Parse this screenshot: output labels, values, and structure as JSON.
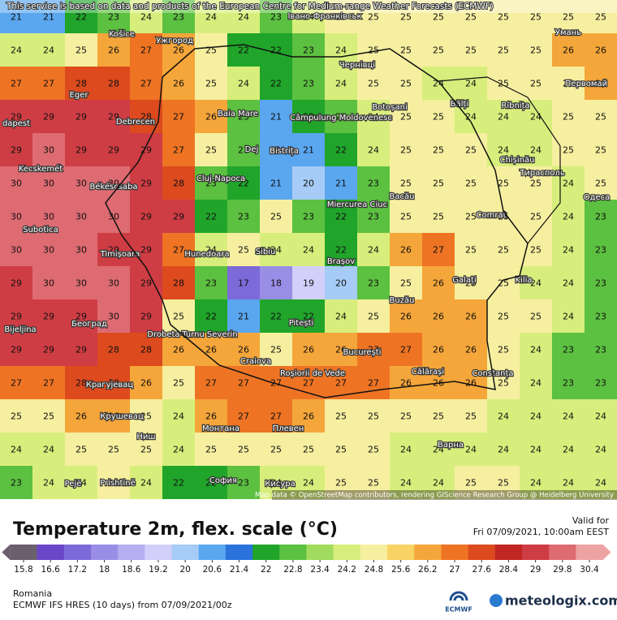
{
  "header": {
    "notice": "This service is based on data and products of the European Centre for Medium-range Weather Forecasts (ECMWF)"
  },
  "map": {
    "temperature_grid": [
      [
        21,
        21,
        22,
        23,
        24,
        23,
        24,
        24,
        23,
        24,
        25,
        25,
        25,
        25,
        25,
        25,
        25,
        25,
        25
      ],
      [
        24,
        24,
        25,
        26,
        27,
        26,
        25,
        22,
        22,
        23,
        24,
        25,
        25,
        25,
        25,
        25,
        25,
        26,
        26
      ],
      [
        27,
        27,
        28,
        28,
        27,
        26,
        25,
        24,
        22,
        23,
        24,
        25,
        25,
        24,
        24,
        25,
        25,
        25,
        26
      ],
      [
        29,
        29,
        29,
        29,
        28,
        27,
        26,
        23,
        21,
        22,
        23,
        24,
        25,
        25,
        24,
        24,
        24,
        25,
        25
      ],
      [
        29,
        30,
        29,
        29,
        29,
        27,
        25,
        23,
        21,
        21,
        22,
        24,
        25,
        25,
        25,
        24,
        24,
        25,
        25
      ],
      [
        30,
        30,
        30,
        30,
        29,
        28,
        23,
        22,
        21,
        20,
        21,
        23,
        25,
        25,
        25,
        25,
        25,
        24,
        25
      ],
      [
        30,
        30,
        30,
        30,
        29,
        29,
        22,
        23,
        25,
        23,
        22,
        23,
        25,
        25,
        25,
        25,
        25,
        24,
        23
      ],
      [
        30,
        30,
        30,
        29,
        29,
        27,
        24,
        25,
        24,
        24,
        22,
        24,
        26,
        27,
        25,
        25,
        25,
        24,
        23
      ],
      [
        29,
        30,
        30,
        30,
        29,
        28,
        23,
        17,
        18,
        19,
        20,
        23,
        25,
        26,
        25,
        25,
        24,
        24,
        23
      ],
      [
        29,
        29,
        29,
        30,
        29,
        25,
        22,
        21,
        22,
        22,
        24,
        25,
        26,
        26,
        26,
        25,
        25,
        24,
        23
      ],
      [
        29,
        29,
        29,
        28,
        28,
        26,
        26,
        26,
        25,
        26,
        26,
        27,
        27,
        26,
        26,
        25,
        24,
        23,
        23
      ],
      [
        27,
        27,
        28,
        28,
        26,
        25,
        27,
        27,
        27,
        27,
        27,
        27,
        26,
        26,
        26,
        25,
        24,
        23,
        23
      ],
      [
        25,
        25,
        26,
        26,
        25,
        24,
        26,
        27,
        27,
        26,
        25,
        25,
        25,
        25,
        25,
        24,
        24,
        24,
        24
      ],
      [
        24,
        24,
        25,
        25,
        25,
        24,
        25,
        25,
        25,
        25,
        25,
        25,
        24,
        24,
        24,
        24,
        24,
        24,
        24
      ],
      [
        23,
        24,
        24,
        25,
        24,
        22,
        22,
        23,
        24,
        24,
        25,
        25,
        24,
        24,
        25,
        25,
        24,
        24,
        24
      ]
    ],
    "places": [
      "Košice",
      "Ужгород",
      "Івано-Франківськ",
      "Чернівці",
      "Умань",
      "Первомай",
      "Eger",
      "dapest",
      "Debrecen",
      "Baia Mare",
      "Câmpulung Moldovenesc",
      "Botoșani",
      "Bălți",
      "Rîbnița",
      "Dej",
      "Bistrița",
      "Cluj-Napoca",
      "Kecskemét",
      "Békéscsaba",
      "Chișinău",
      "Тирасполь",
      "Одеса",
      "Bacău",
      "Miercurea Ciuc",
      "Comrat",
      "Subotica",
      "Timișoara",
      "Hunedoara",
      "Sibiu",
      "Brașov",
      "Galați",
      "Kilia",
      "Buzău",
      "Pitești",
      "Drobeta-Turnu Severin",
      "Београд",
      "Bijeljina",
      "București",
      "Craiova",
      "Roșiorii de Vede",
      "Călărași",
      "Constanța",
      "Крагујевац",
      "Крушевац",
      "Ниш",
      "Монтана",
      "Плевен",
      "Варна",
      "София",
      "Кисура",
      "Pejë",
      "Prishtinë"
    ],
    "attribution": "Map data © OpenStreetMap contributors, rendering GIScience Research Group @ Heidelberg University"
  },
  "legend": {
    "title": "Temperature 2m, flex. scale (°C)",
    "scale_labels": [
      15.8,
      16.6,
      17.2,
      18,
      18.6,
      19.2,
      20,
      20.6,
      21.4,
      22,
      22.8,
      23.4,
      24.2,
      24.8,
      25.6,
      26.2,
      27,
      27.6,
      28.4,
      29,
      29.8,
      30.4
    ],
    "scale_colors": [
      "#6b5f6e",
      "#6a46c8",
      "#7c6ad8",
      "#998de6",
      "#b6aef0",
      "#d2d0fb",
      "#a6cbf6",
      "#5aa6ef",
      "#2a72dc",
      "#20a52a",
      "#5cc040",
      "#a2dc5e",
      "#d8ee7c",
      "#f6efa0",
      "#f8d364",
      "#f5a63a",
      "#ee7424",
      "#dc4a1e",
      "#c22622",
      "#cf3d44",
      "#de6b72",
      "#eea3a3"
    ]
  },
  "valid": {
    "label": "Valid for",
    "time": "Fri 07/09/2021, 10:00am EEST"
  },
  "footer": {
    "region": "Romania",
    "model": "ECMWF IFS HRES (10 days) from 07/09/2021/00z",
    "ecmwf": "ECMWF",
    "brand": "meteologix.com"
  }
}
